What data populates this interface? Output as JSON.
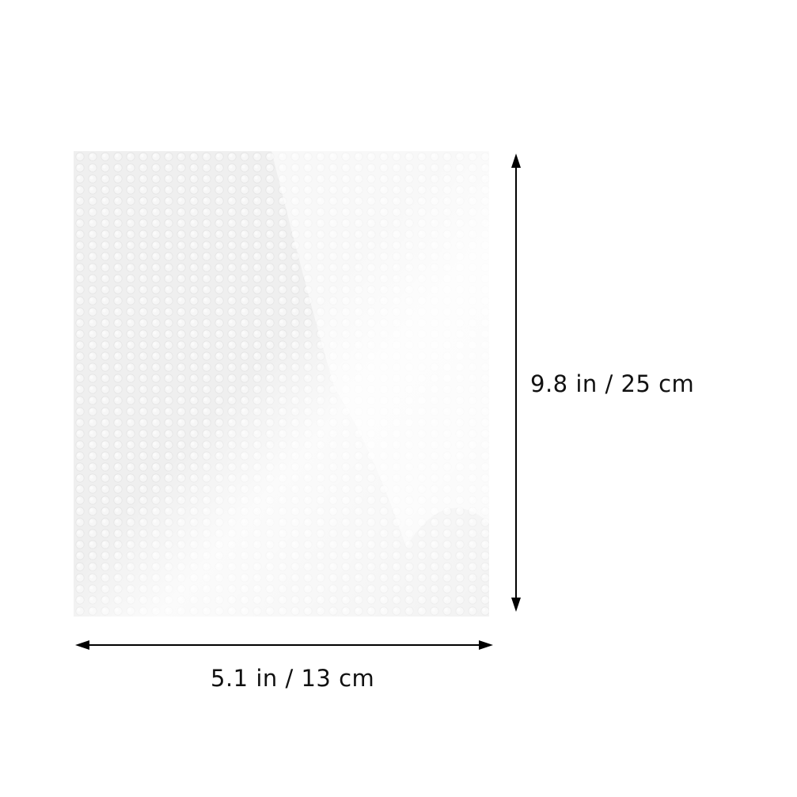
{
  "product": {
    "name": "bubble-wrap-sheet",
    "color": "#f2f2f2"
  },
  "dimensions": {
    "height_label": "9.8 in / 25 cm",
    "width_label": "5.1 in / 13 cm"
  },
  "colors": {
    "background": "#ffffff",
    "arrow": "#000000",
    "text": "#111111"
  }
}
